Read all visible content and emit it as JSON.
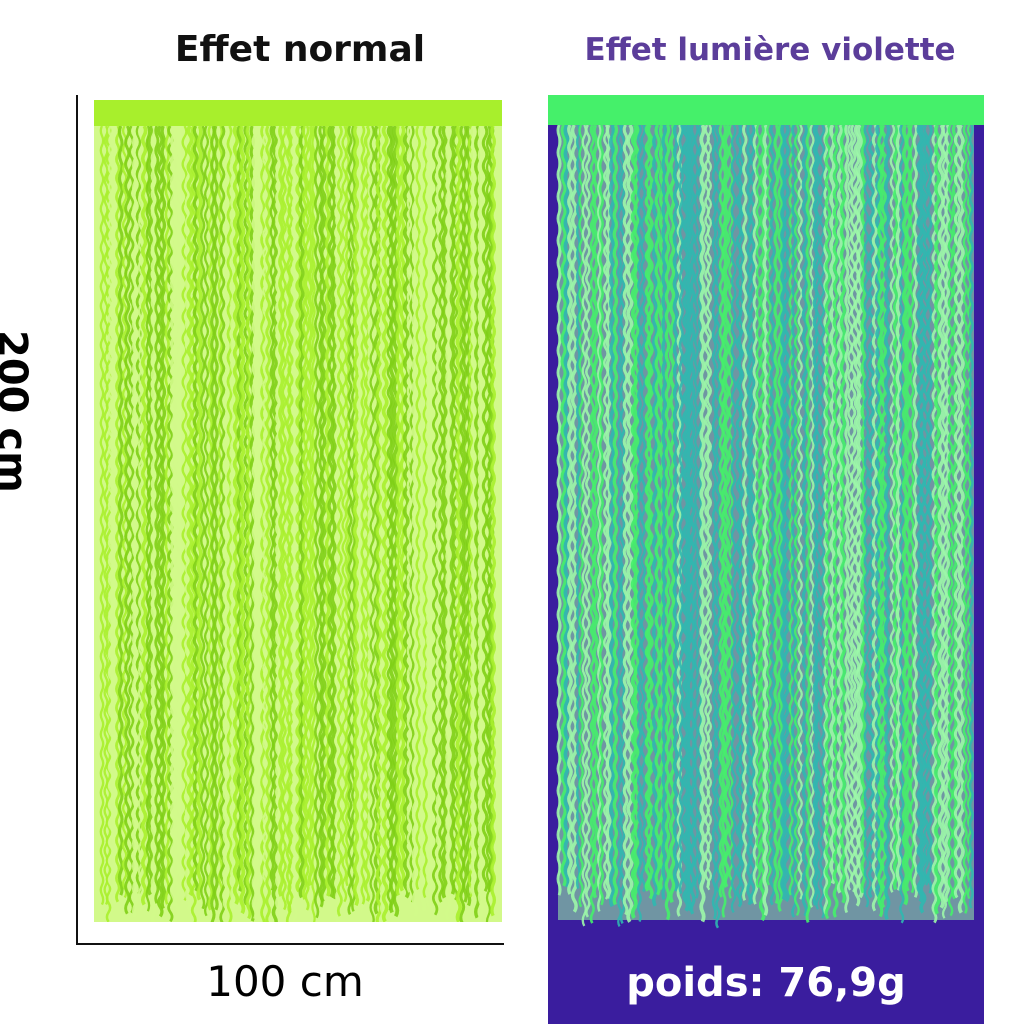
{
  "titles": {
    "normal": "Effet normal",
    "violet": "Effet lumière violette"
  },
  "dimensions": {
    "height_label": "200 cm",
    "width_label": "100 cm"
  },
  "weight_label": "poids: 76,9g",
  "colors": {
    "normal_title": "#111111",
    "violet_title": "#5b3d9a",
    "normal_curtain": "#a8ef2c",
    "normal_curtain_dark": "#7fcf16",
    "normal_curtain_light": "#d2f98a",
    "violet_background": "#3a1d9e",
    "violet_curtain": "#45f06a",
    "violet_curtain_dark": "#2fb8b0",
    "violet_curtain_light": "#9cf7a8",
    "weight_text": "#ffffff"
  },
  "icons": {
    "curtain_normal": "fringe-curtain-picture",
    "curtain_violet": "fringe-curtain-uv-picture"
  }
}
